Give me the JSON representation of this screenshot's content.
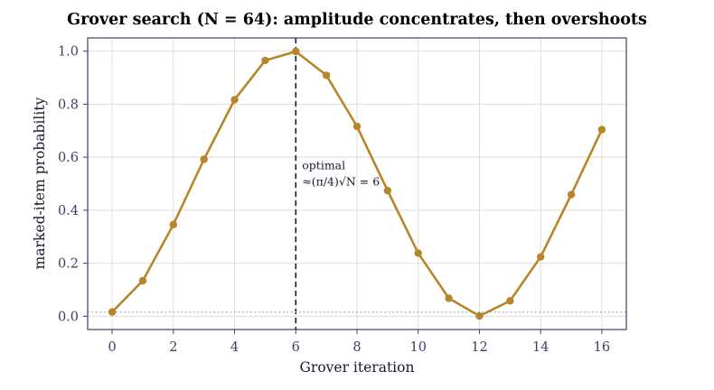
{
  "chart_data": {
    "type": "line",
    "title": "Grover search (N = 64): amplitude concentrates, then overshoots",
    "xlabel": "Grover iteration",
    "ylabel": "marked-item probability",
    "xlim": [
      -0.8,
      16.8
    ],
    "ylim": [
      -0.05,
      1.05
    ],
    "x_ticks": [
      0,
      2,
      4,
      6,
      8,
      10,
      12,
      14,
      16
    ],
    "x_tick_labels": [
      "0",
      "2",
      "4",
      "6",
      "8",
      "10",
      "12",
      "14",
      "16"
    ],
    "y_ticks": [
      0.0,
      0.2,
      0.4,
      0.6,
      0.8,
      1.0
    ],
    "y_tick_labels": [
      "0.0",
      "0.2",
      "0.4",
      "0.6",
      "0.8",
      "1.0"
    ],
    "grid": true,
    "series": [
      {
        "x": [
          0,
          1,
          2,
          3,
          4,
          5,
          6,
          7,
          8,
          9,
          10,
          11,
          12,
          13,
          14,
          15,
          16
        ],
        "values": [
          0.016,
          0.134,
          0.346,
          0.592,
          0.817,
          0.965,
          0.999,
          0.909,
          0.716,
          0.474,
          0.238,
          0.068,
          0.001,
          0.058,
          0.224,
          0.459,
          0.704
        ],
        "color": "#b8862a"
      }
    ],
    "reference_lines": [
      {
        "orientation": "vertical",
        "x": 6,
        "style": "dashed",
        "color": "#1a1a2e"
      },
      {
        "orientation": "horizontal",
        "y": 0.016,
        "style": "dotted",
        "color": "#a0a0a0"
      }
    ],
    "annotation": {
      "lines": [
        "optimal",
        "≈(π/4)√N = 6"
      ],
      "x": 6,
      "y": 0.555
    },
    "colors": {
      "grid": "#e2ded4",
      "frame": "#3a4068",
      "text": "#1a1a2a"
    }
  }
}
